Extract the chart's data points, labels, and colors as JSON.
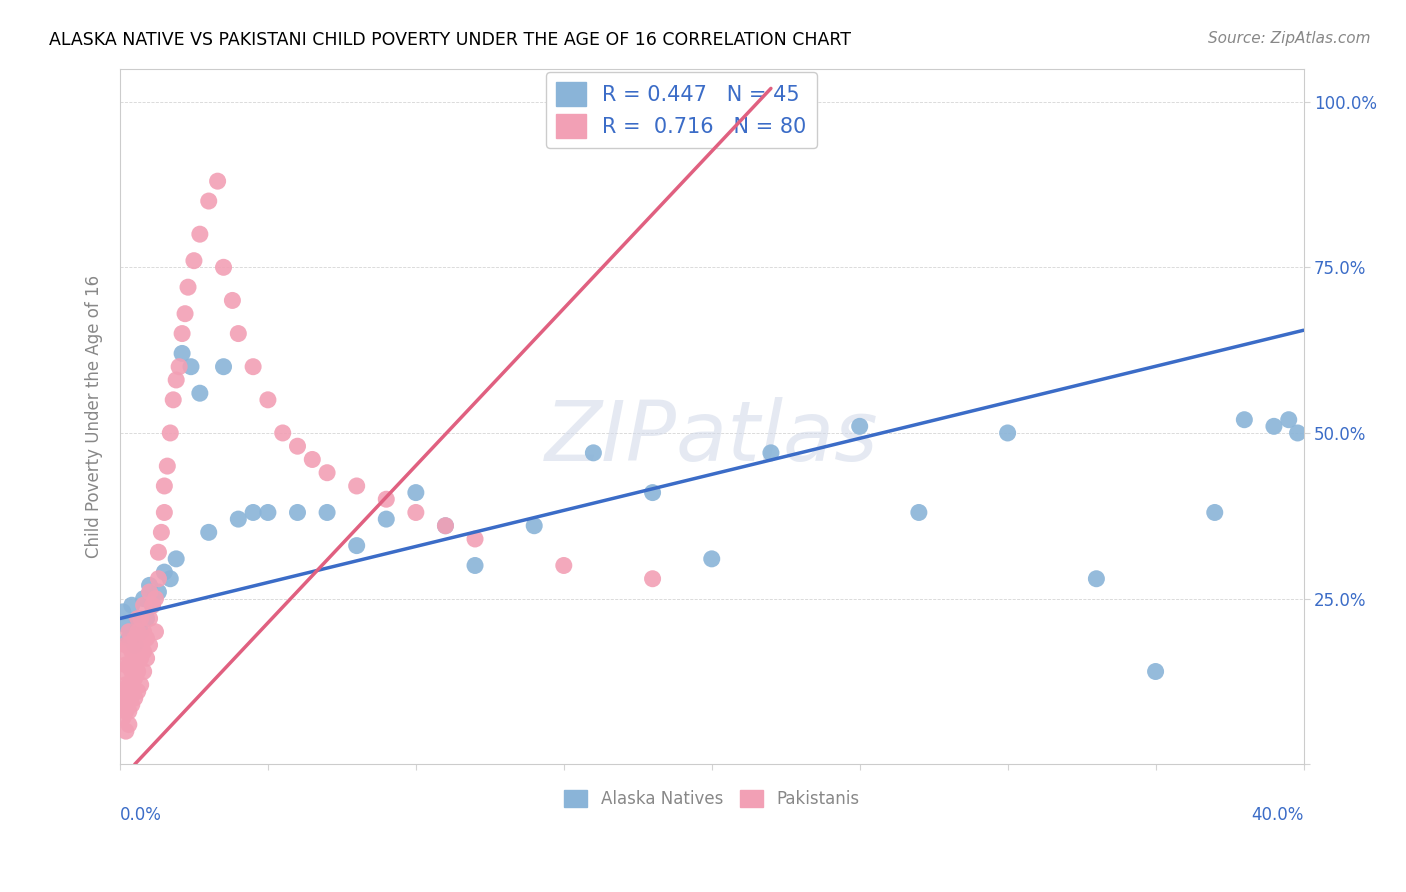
{
  "title": "ALASKA NATIVE VS PAKISTANI CHILD POVERTY UNDER THE AGE OF 16 CORRELATION CHART",
  "source": "Source: ZipAtlas.com",
  "ylabel": "Child Poverty Under the Age of 16",
  "watermark_text": "ZIPatlas",
  "xmin": 0.0,
  "xmax": 0.4,
  "ymin": 0.0,
  "ymax": 1.05,
  "blue_scatter_color": "#8ab4d8",
  "pink_scatter_color": "#f2a0b5",
  "blue_line_color": "#3b6cc7",
  "pink_line_color": "#e06080",
  "legend_r_n_color": "#3b6cc7",
  "ytick_color": "#3b6cc7",
  "xtick_label_color": "#3b6cc7",
  "legend1_labels": [
    "R = 0.447   N = 45",
    "R =  0.716   N = 80"
  ],
  "legend2_labels": [
    "Alaska Natives",
    "Pakistanis"
  ],
  "alaska_x": [
    0.001,
    0.002,
    0.003,
    0.004,
    0.005,
    0.006,
    0.007,
    0.008,
    0.009,
    0.01,
    0.011,
    0.013,
    0.015,
    0.017,
    0.019,
    0.021,
    0.024,
    0.027,
    0.03,
    0.035,
    0.04,
    0.045,
    0.05,
    0.06,
    0.07,
    0.08,
    0.09,
    0.1,
    0.11,
    0.12,
    0.14,
    0.16,
    0.18,
    0.2,
    0.22,
    0.25,
    0.27,
    0.3,
    0.33,
    0.35,
    0.37,
    0.38,
    0.39,
    0.395,
    0.398
  ],
  "alaska_y": [
    0.23,
    0.21,
    0.19,
    0.24,
    0.18,
    0.22,
    0.2,
    0.25,
    0.22,
    0.27,
    0.24,
    0.26,
    0.29,
    0.28,
    0.31,
    0.62,
    0.6,
    0.56,
    0.35,
    0.6,
    0.37,
    0.38,
    0.38,
    0.38,
    0.38,
    0.33,
    0.37,
    0.41,
    0.36,
    0.3,
    0.36,
    0.47,
    0.41,
    0.31,
    0.47,
    0.51,
    0.38,
    0.5,
    0.28,
    0.14,
    0.38,
    0.52,
    0.51,
    0.52,
    0.5
  ],
  "pak_x": [
    0.001,
    0.001,
    0.001,
    0.001,
    0.001,
    0.002,
    0.002,
    0.002,
    0.002,
    0.002,
    0.002,
    0.003,
    0.003,
    0.003,
    0.003,
    0.003,
    0.003,
    0.003,
    0.004,
    0.004,
    0.004,
    0.004,
    0.005,
    0.005,
    0.005,
    0.005,
    0.006,
    0.006,
    0.006,
    0.006,
    0.006,
    0.007,
    0.007,
    0.007,
    0.007,
    0.008,
    0.008,
    0.008,
    0.008,
    0.009,
    0.009,
    0.01,
    0.01,
    0.01,
    0.011,
    0.012,
    0.012,
    0.013,
    0.013,
    0.014,
    0.015,
    0.015,
    0.016,
    0.017,
    0.018,
    0.019,
    0.02,
    0.021,
    0.022,
    0.023,
    0.025,
    0.027,
    0.03,
    0.033,
    0.035,
    0.038,
    0.04,
    0.045,
    0.05,
    0.055,
    0.06,
    0.065,
    0.07,
    0.08,
    0.09,
    0.1,
    0.11,
    0.12,
    0.15,
    0.18
  ],
  "pak_y": [
    0.07,
    0.09,
    0.11,
    0.14,
    0.17,
    0.05,
    0.08,
    0.1,
    0.12,
    0.15,
    0.18,
    0.06,
    0.08,
    0.1,
    0.12,
    0.15,
    0.18,
    0.2,
    0.09,
    0.12,
    0.14,
    0.17,
    0.1,
    0.13,
    0.16,
    0.19,
    0.11,
    0.14,
    0.17,
    0.2,
    0.22,
    0.12,
    0.16,
    0.19,
    0.22,
    0.14,
    0.17,
    0.2,
    0.24,
    0.16,
    0.19,
    0.18,
    0.22,
    0.26,
    0.24,
    0.2,
    0.25,
    0.28,
    0.32,
    0.35,
    0.38,
    0.42,
    0.45,
    0.5,
    0.55,
    0.58,
    0.6,
    0.65,
    0.68,
    0.72,
    0.76,
    0.8,
    0.85,
    0.88,
    0.75,
    0.7,
    0.65,
    0.6,
    0.55,
    0.5,
    0.48,
    0.46,
    0.44,
    0.42,
    0.4,
    0.38,
    0.36,
    0.34,
    0.3,
    0.28
  ],
  "blue_line_x": [
    0.0,
    0.4
  ],
  "blue_line_y": [
    0.22,
    0.655
  ],
  "pink_line_x": [
    0.005,
    0.22
  ],
  "pink_line_y": [
    0.0,
    1.02
  ]
}
